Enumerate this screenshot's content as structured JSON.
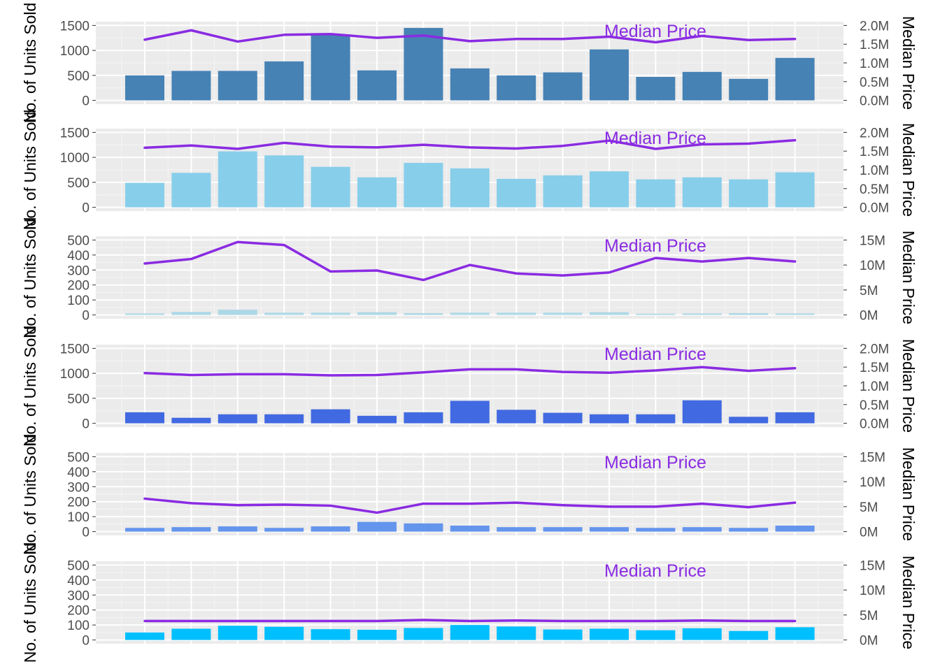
{
  "chart_data": [
    {
      "type": "bar",
      "ylabel": "No. of Units Sold",
      "y2label": "Median Price",
      "annotation": "Median Price",
      "ylim": [
        0,
        1500
      ],
      "yticks": [
        0,
        500,
        1000,
        1500
      ],
      "y2lim": [
        0,
        2000000
      ],
      "y2ticks": [
        0,
        500000,
        1000000,
        1500000,
        2000000
      ],
      "y2ticklabels": [
        "0.0M",
        "0.5M",
        "1.0M",
        "1.5M",
        "2.0M"
      ],
      "bar_color": "#4682B4",
      "line_color": "#8A2BE2",
      "values": [
        500,
        590,
        590,
        780,
        1320,
        600,
        1450,
        640,
        500,
        560,
        1020,
        470,
        570,
        430,
        850
      ],
      "line_values": [
        1620000,
        1870000,
        1570000,
        1750000,
        1770000,
        1670000,
        1730000,
        1580000,
        1640000,
        1640000,
        1700000,
        1550000,
        1720000,
        1610000,
        1640000
      ]
    },
    {
      "type": "bar",
      "ylabel": "No. of Units Sold",
      "y2label": "Median Price",
      "annotation": "Median Price",
      "ylim": [
        0,
        1500
      ],
      "yticks": [
        0,
        500,
        1000,
        1500
      ],
      "y2lim": [
        0,
        2000000
      ],
      "y2ticks": [
        0,
        500000,
        1000000,
        1500000,
        2000000
      ],
      "y2ticklabels": [
        "0.0M",
        "0.5M",
        "1.0M",
        "1.5M",
        "2.0M"
      ],
      "bar_color": "#87CEEB",
      "line_color": "#8A2BE2",
      "values": [
        490,
        690,
        1120,
        1040,
        810,
        600,
        890,
        780,
        570,
        640,
        720,
        560,
        600,
        560,
        700
      ],
      "line_values": [
        1590000,
        1650000,
        1560000,
        1720000,
        1620000,
        1600000,
        1670000,
        1600000,
        1570000,
        1640000,
        1780000,
        1560000,
        1680000,
        1700000,
        1790000
      ]
    },
    {
      "type": "bar",
      "ylabel": "No. of Units Sold",
      "y2label": "Median Price",
      "annotation": "Median Price",
      "ylim": [
        0,
        500
      ],
      "yticks": [
        0,
        100,
        200,
        300,
        400,
        500
      ],
      "y2lim": [
        0,
        15000000
      ],
      "y2ticks": [
        0,
        5000000,
        10000000,
        15000000
      ],
      "y2ticklabels": [
        "0M",
        "5M",
        "10M",
        "15M"
      ],
      "bar_color": "#ADD8E6",
      "line_color": "#8A2BE2",
      "values": [
        10,
        20,
        35,
        15,
        15,
        18,
        12,
        15,
        15,
        15,
        18,
        8,
        10,
        12,
        10
      ],
      "line_values": [
        10300000,
        11200000,
        14600000,
        14000000,
        8700000,
        8900000,
        7000000,
        10000000,
        8300000,
        7900000,
        8500000,
        11400000,
        10700000,
        11400000,
        10700000
      ]
    },
    {
      "type": "bar",
      "ylabel": "No. of Units Sold",
      "y2label": "Median Price",
      "annotation": "Median Price",
      "ylim": [
        0,
        1500
      ],
      "yticks": [
        0,
        500,
        1000,
        1500
      ],
      "y2lim": [
        0,
        2000000
      ],
      "y2ticks": [
        0,
        500000,
        1000000,
        1500000,
        2000000
      ],
      "y2ticklabels": [
        "0.0M",
        "0.5M",
        "1.0M",
        "1.5M",
        "2.0M"
      ],
      "bar_color": "#4169E1",
      "line_color": "#8A2BE2",
      "values": [
        220,
        110,
        180,
        180,
        280,
        150,
        220,
        450,
        270,
        210,
        180,
        180,
        460,
        130,
        220
      ],
      "line_values": [
        1340000,
        1290000,
        1310000,
        1310000,
        1280000,
        1290000,
        1360000,
        1440000,
        1440000,
        1370000,
        1350000,
        1410000,
        1500000,
        1400000,
        1470000
      ]
    },
    {
      "type": "bar",
      "ylabel": "No. of Units Sold",
      "y2label": "Median Price",
      "annotation": "Median Price",
      "ylim": [
        0,
        500
      ],
      "yticks": [
        0,
        100,
        200,
        300,
        400,
        500
      ],
      "y2lim": [
        0,
        15000000
      ],
      "y2ticks": [
        0,
        5000000,
        10000000,
        15000000
      ],
      "y2ticklabels": [
        "0M",
        "5M",
        "10M",
        "15M"
      ],
      "bar_color": "#6495ED",
      "line_color": "#8A2BE2",
      "values": [
        25,
        30,
        35,
        25,
        35,
        65,
        55,
        40,
        30,
        30,
        30,
        25,
        30,
        25,
        40
      ],
      "line_values": [
        6600000,
        5700000,
        5300000,
        5400000,
        5200000,
        3800000,
        5600000,
        5600000,
        5800000,
        5300000,
        5000000,
        5000000,
        5600000,
        4900000,
        5800000
      ]
    },
    {
      "type": "bar",
      "ylabel": "No. of Units Sold",
      "y2label": "Median Price",
      "annotation": "Median Price",
      "ylim": [
        0,
        500
      ],
      "yticks": [
        0,
        100,
        200,
        300,
        400,
        500
      ],
      "y2lim": [
        0,
        15000000
      ],
      "y2ticks": [
        0,
        5000000,
        10000000,
        15000000
      ],
      "y2ticklabels": [
        "0M",
        "5M",
        "10M",
        "15M"
      ],
      "bar_color": "#00BFFF",
      "line_color": "#8A2BE2",
      "values": [
        50,
        75,
        95,
        88,
        72,
        68,
        80,
        100,
        90,
        70,
        75,
        65,
        78,
        60,
        85
      ],
      "line_values": [
        3800000,
        3800000,
        3800000,
        3800000,
        3800000,
        3800000,
        4000000,
        3800000,
        3900000,
        3800000,
        3800000,
        3800000,
        3900000,
        3800000,
        3800000
      ]
    }
  ]
}
